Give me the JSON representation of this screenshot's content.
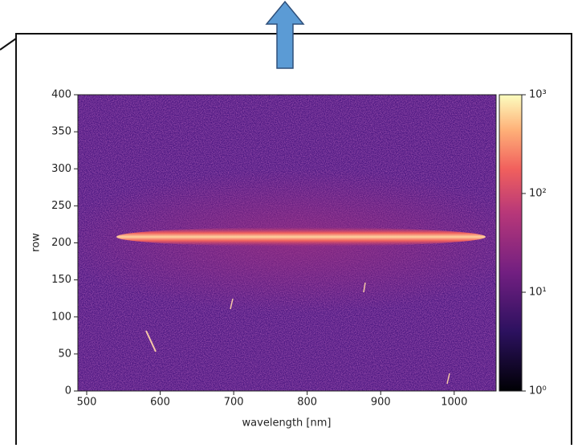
{
  "chart_data": {
    "type": "image",
    "x_label": "wavelength [nm]",
    "y_label": "row",
    "xlim": [
      488,
      1057
    ],
    "xticks": [
      500,
      600,
      700,
      800,
      900,
      1000
    ],
    "ylim": [
      0,
      400
    ],
    "yticks": [
      0,
      50,
      100,
      150,
      200,
      250,
      300,
      350,
      400
    ],
    "colorbar_lim": [
      1,
      1000
    ],
    "colorbar_log": true,
    "colorbar_ticks": [
      {
        "value": 1,
        "label": "10⁰"
      },
      {
        "value": 10,
        "label": "10¹"
      },
      {
        "value": 100,
        "label": "10²"
      },
      {
        "value": 1000,
        "label": "10³"
      }
    ]
  }
}
